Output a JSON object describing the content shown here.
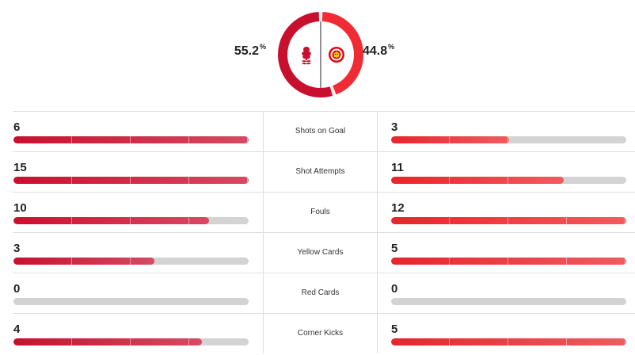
{
  "colors": {
    "home_accent": "#c8102e",
    "away_accent": "#e8242c",
    "track": "#d3d3d3"
  },
  "possession": {
    "home": {
      "value": "55.2",
      "fraction": 0.552,
      "crest_icon": "nottingham-forest-crest-icon"
    },
    "away": {
      "value": "44.8",
      "fraction": 0.448,
      "crest_icon": "brentford-crest-icon"
    },
    "percent_sign": "%"
  },
  "stats": [
    {
      "label": "Shots on Goal",
      "home": "6",
      "away": "3",
      "home_fraction": 1.0,
      "away_fraction": 0.5
    },
    {
      "label": "Shot Attempts",
      "home": "15",
      "away": "11",
      "home_fraction": 1.0,
      "away_fraction": 0.733
    },
    {
      "label": "Fouls",
      "home": "10",
      "away": "12",
      "home_fraction": 0.833,
      "away_fraction": 1.0
    },
    {
      "label": "Yellow Cards",
      "home": "3",
      "away": "5",
      "home_fraction": 0.6,
      "away_fraction": 1.0
    },
    {
      "label": "Red Cards",
      "home": "0",
      "away": "0",
      "home_fraction": 0,
      "away_fraction": 0
    },
    {
      "label": "Corner Kicks",
      "home": "4",
      "away": "5",
      "home_fraction": 0.8,
      "away_fraction": 1.0
    }
  ]
}
